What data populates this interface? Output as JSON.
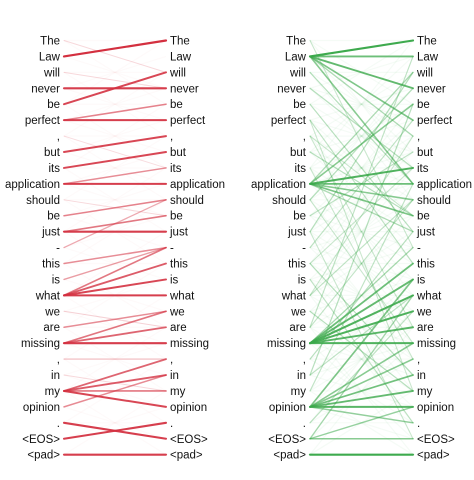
{
  "tokens": [
    "The",
    "Law",
    "will",
    "never",
    "be",
    "perfect",
    ",",
    "but",
    "its",
    "application",
    "should",
    "be",
    "just",
    "-",
    "this",
    "is",
    "what",
    "we",
    "are",
    "missing",
    ",",
    "in",
    "my",
    "opinion",
    ".",
    "<EOS>",
    "<pad>"
  ],
  "colors": {
    "left_panel": "#d32f3f",
    "right_panel": "#3aa84a"
  },
  "panels": [
    {
      "id": "left",
      "color_key": "left_panel",
      "strong_links": [
        {
          "from": 1,
          "to": 0,
          "weight": 1.0
        },
        {
          "from": 3,
          "to": 3,
          "weight": 0.9
        },
        {
          "from": 4,
          "to": 2,
          "weight": 0.85
        },
        {
          "from": 5,
          "to": 5,
          "weight": 0.9
        },
        {
          "from": 5,
          "to": 4,
          "weight": 0.55
        },
        {
          "from": 7,
          "to": 6,
          "weight": 0.85
        },
        {
          "from": 8,
          "to": 7,
          "weight": 0.85
        },
        {
          "from": 9,
          "to": 9,
          "weight": 0.9
        },
        {
          "from": 9,
          "to": 8,
          "weight": 0.5
        },
        {
          "from": 11,
          "to": 10,
          "weight": 0.55
        },
        {
          "from": 12,
          "to": 12,
          "weight": 0.9
        },
        {
          "from": 12,
          "to": 11,
          "weight": 0.6
        },
        {
          "from": 13,
          "to": 10,
          "weight": 0.35
        },
        {
          "from": 14,
          "to": 13,
          "weight": 0.5
        },
        {
          "from": 15,
          "to": 13,
          "weight": 0.4
        },
        {
          "from": 16,
          "to": 16,
          "weight": 0.9
        },
        {
          "from": 16,
          "to": 15,
          "weight": 0.85
        },
        {
          "from": 16,
          "to": 14,
          "weight": 0.75
        },
        {
          "from": 16,
          "to": 13,
          "weight": 0.6
        },
        {
          "from": 18,
          "to": 17,
          "weight": 0.5
        },
        {
          "from": 19,
          "to": 19,
          "weight": 0.9
        },
        {
          "from": 19,
          "to": 18,
          "weight": 0.7
        },
        {
          "from": 19,
          "to": 17,
          "weight": 0.6
        },
        {
          "from": 20,
          "to": 20,
          "weight": 0.25
        },
        {
          "from": 22,
          "to": 23,
          "weight": 0.85
        },
        {
          "from": 22,
          "to": 22,
          "weight": 0.6
        },
        {
          "from": 22,
          "to": 21,
          "weight": 0.75
        },
        {
          "from": 22,
          "to": 20,
          "weight": 0.7
        },
        {
          "from": 23,
          "to": 21,
          "weight": 0.5
        },
        {
          "from": 24,
          "to": 25,
          "weight": 0.9
        },
        {
          "from": 25,
          "to": 24,
          "weight": 0.9
        },
        {
          "from": 26,
          "to": 26,
          "weight": 0.9
        },
        {
          "from": 0,
          "to": 2,
          "weight": 0.12
        },
        {
          "from": 2,
          "to": 3,
          "weight": 0.12
        },
        {
          "from": 6,
          "to": 8,
          "weight": 0.1
        },
        {
          "from": 10,
          "to": 11,
          "weight": 0.12
        },
        {
          "from": 17,
          "to": 18,
          "weight": 0.15
        },
        {
          "from": 21,
          "to": 22,
          "weight": 0.12
        }
      ]
    },
    {
      "id": "right",
      "color_key": "right_panel",
      "strong_links": [
        {
          "from": 1,
          "to": 0,
          "weight": 0.95
        },
        {
          "from": 1,
          "to": 1,
          "weight": 0.7
        },
        {
          "from": 1,
          "to": 3,
          "weight": 0.75
        },
        {
          "from": 1,
          "to": 5,
          "weight": 0.6
        },
        {
          "from": 1,
          "to": 9,
          "weight": 0.55
        },
        {
          "from": 1,
          "to": 6,
          "weight": 0.35
        },
        {
          "from": 9,
          "to": 4,
          "weight": 0.55
        },
        {
          "from": 9,
          "to": 8,
          "weight": 0.85
        },
        {
          "from": 9,
          "to": 9,
          "weight": 0.7
        },
        {
          "from": 9,
          "to": 10,
          "weight": 0.55
        },
        {
          "from": 9,
          "to": 11,
          "weight": 0.6
        },
        {
          "from": 9,
          "to": 12,
          "weight": 0.35
        },
        {
          "from": 9,
          "to": 2,
          "weight": 0.35
        },
        {
          "from": 19,
          "to": 14,
          "weight": 0.7
        },
        {
          "from": 19,
          "to": 15,
          "weight": 0.75
        },
        {
          "from": 19,
          "to": 16,
          "weight": 0.85
        },
        {
          "from": 19,
          "to": 17,
          "weight": 0.85
        },
        {
          "from": 19,
          "to": 18,
          "weight": 0.8
        },
        {
          "from": 19,
          "to": 19,
          "weight": 0.85
        },
        {
          "from": 19,
          "to": 13,
          "weight": 0.35
        },
        {
          "from": 23,
          "to": 15,
          "weight": 0.6
        },
        {
          "from": 23,
          "to": 19,
          "weight": 0.55
        },
        {
          "from": 23,
          "to": 20,
          "weight": 0.55
        },
        {
          "from": 23,
          "to": 21,
          "weight": 0.65
        },
        {
          "from": 23,
          "to": 22,
          "weight": 0.75
        },
        {
          "from": 23,
          "to": 23,
          "weight": 0.8
        },
        {
          "from": 23,
          "to": 24,
          "weight": 0.5
        },
        {
          "from": 25,
          "to": 16,
          "weight": 0.4
        },
        {
          "from": 25,
          "to": 25,
          "weight": 0.55
        },
        {
          "from": 25,
          "to": 23,
          "weight": 0.45
        },
        {
          "from": 26,
          "to": 26,
          "weight": 0.95
        },
        {
          "from": 2,
          "to": 9,
          "weight": 0.3
        },
        {
          "from": 3,
          "to": 8,
          "weight": 0.3
        },
        {
          "from": 4,
          "to": 12,
          "weight": 0.25
        },
        {
          "from": 5,
          "to": 14,
          "weight": 0.25
        },
        {
          "from": 6,
          "to": 18,
          "weight": 0.2
        },
        {
          "from": 7,
          "to": 11,
          "weight": 0.3
        },
        {
          "from": 10,
          "to": 3,
          "weight": 0.3
        },
        {
          "from": 11,
          "to": 7,
          "weight": 0.25
        },
        {
          "from": 12,
          "to": 2,
          "weight": 0.3
        },
        {
          "from": 13,
          "to": 5,
          "weight": 0.25
        },
        {
          "from": 14,
          "to": 21,
          "weight": 0.3
        },
        {
          "from": 15,
          "to": 24,
          "weight": 0.25
        },
        {
          "from": 16,
          "to": 10,
          "weight": 0.25
        },
        {
          "from": 17,
          "to": 22,
          "weight": 0.3
        },
        {
          "from": 18,
          "to": 1,
          "weight": 0.25
        },
        {
          "from": 20,
          "to": 12,
          "weight": 0.25
        },
        {
          "from": 21,
          "to": 4,
          "weight": 0.3
        },
        {
          "from": 22,
          "to": 9,
          "weight": 0.25
        },
        {
          "from": 24,
          "to": 17,
          "weight": 0.25
        },
        {
          "from": 0,
          "to": 13,
          "weight": 0.2
        },
        {
          "from": 8,
          "to": 20,
          "weight": 0.2
        },
        {
          "from": 12,
          "to": 25,
          "weight": 0.2
        },
        {
          "from": 5,
          "to": 22,
          "weight": 0.2
        },
        {
          "from": 16,
          "to": 6,
          "weight": 0.2
        },
        {
          "from": 21,
          "to": 16,
          "weight": 0.25
        },
        {
          "from": 14,
          "to": 8,
          "weight": 0.2
        },
        {
          "from": 10,
          "to": 19,
          "weight": 0.2
        },
        {
          "from": 6,
          "to": 11,
          "weight": 0.2
        },
        {
          "from": 18,
          "to": 10,
          "weight": 0.2
        }
      ]
    }
  ]
}
